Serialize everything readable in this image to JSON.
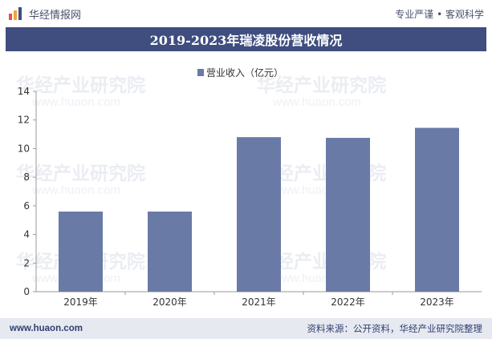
{
  "header": {
    "brand": "华经情报网",
    "slogan": "专业严谨 • 客观科学"
  },
  "title_bar": {
    "title": "2019-2023年瑞凌股份营收情况"
  },
  "watermark": {
    "text": "华经产业研究院",
    "url": "www.huaon.com"
  },
  "footer": {
    "url": "www.huaon.com",
    "source": "资料来源：公开资料，华经产业研究院整理"
  },
  "colors": {
    "bar": "#6a7aa6",
    "title_bg": "#3f4e7f",
    "footer_bg": "#e6e9f0",
    "axis": "#9a9a9a"
  },
  "chart_data": {
    "type": "bar",
    "title": "2019-2023年瑞凌股份营收情况",
    "categories": [
      "2019年",
      "2020年",
      "2021年",
      "2022年",
      "2023年"
    ],
    "series": [
      {
        "name": "营业收入（亿元）",
        "values": [
          5.6,
          5.6,
          10.8,
          10.75,
          11.45
        ]
      }
    ],
    "ylim": [
      0,
      14
    ],
    "yticks": [
      "0",
      "2",
      "4",
      "6",
      "8",
      "10",
      "12",
      "14"
    ],
    "xlabel": "",
    "ylabel": "",
    "legend": "top-center",
    "grid": false
  }
}
